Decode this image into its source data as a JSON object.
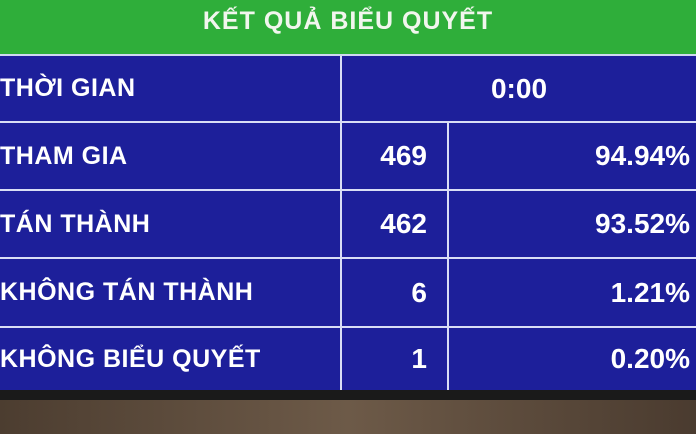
{
  "header": {
    "title": "KẾT QUẢ BIỂU QUYẾT"
  },
  "table": {
    "rows": [
      [
        "THỜI GIAN",
        "0:00"
      ],
      [
        "THAM GIA",
        "469",
        "94.94%"
      ],
      [
        "TÁN THÀNH",
        "462",
        "93.52%"
      ],
      [
        "KHÔNG TÁN THÀNH",
        "6",
        "1.21%"
      ],
      [
        "KHÔNG BIỂU QUYẾT",
        "1",
        "0.20%"
      ]
    ]
  }
}
